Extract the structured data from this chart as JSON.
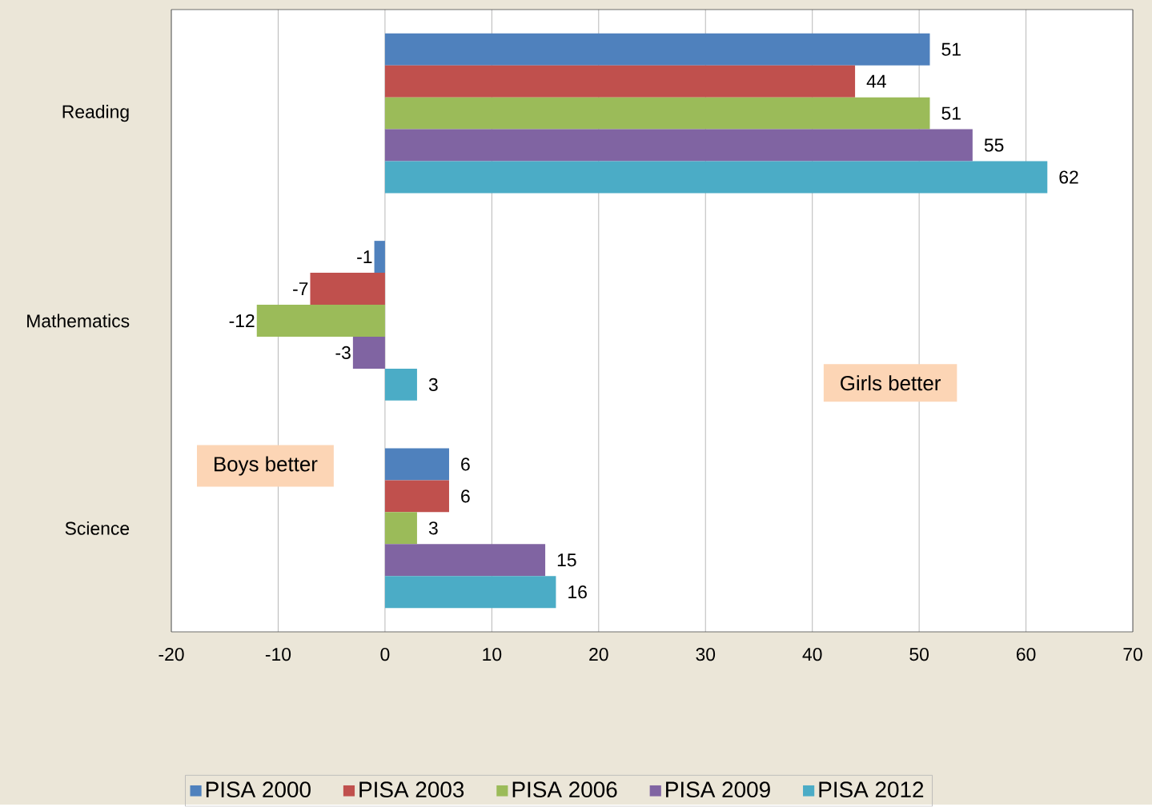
{
  "chart_data": {
    "type": "bar",
    "orientation": "horizontal",
    "categories": [
      "Reading",
      "Mathematics",
      "Science"
    ],
    "series": [
      {
        "name": "PISA 2000",
        "color": "#4f81bd",
        "values": [
          51,
          -1,
          6
        ]
      },
      {
        "name": "PISA 2003",
        "color": "#c0504d",
        "values": [
          44,
          -7,
          6
        ]
      },
      {
        "name": "PISA 2006",
        "color": "#9bbb59",
        "values": [
          51,
          -12,
          3
        ]
      },
      {
        "name": "PISA 2009",
        "color": "#8064a2",
        "values": [
          55,
          -3,
          15
        ]
      },
      {
        "name": "PISA 2012",
        "color": "#4bacc6",
        "values": [
          62,
          3,
          16
        ]
      }
    ],
    "xlim": [
      -20,
      70
    ],
    "xticks": [
      -20,
      -10,
      0,
      10,
      20,
      30,
      40,
      50,
      60,
      70
    ],
    "grid": "x",
    "legend": "bottom",
    "data_labels": true,
    "annotations": [
      "Girls better",
      "Boys better"
    ]
  }
}
